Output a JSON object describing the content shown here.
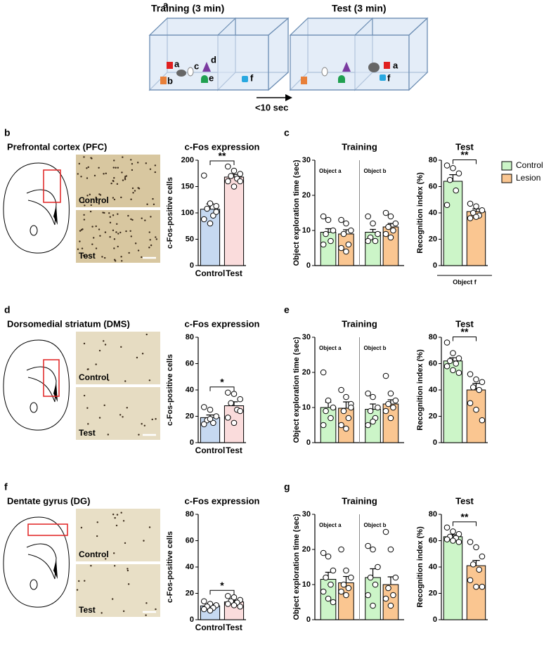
{
  "panel_a": {
    "letter": "a",
    "training": "Training (3 min)",
    "test": "Test (3 min)",
    "delay": "<10 sec",
    "objects": [
      "a",
      "b",
      "c",
      "d",
      "e",
      "f"
    ],
    "test_objects": [
      "a",
      "f"
    ]
  },
  "rows": [
    {
      "letter": "b",
      "region": "Prefrontal cortex (PFC)",
      "image_labels": [
        "Control",
        "Test"
      ],
      "behavior_letter": "c"
    },
    {
      "letter": "d",
      "region": "Dorsomedial striatum (DMS)",
      "image_labels": [
        "Control",
        "Test"
      ],
      "behavior_letter": "e"
    },
    {
      "letter": "f",
      "region": "Dentate gyrus (DG)",
      "image_labels": [
        "Control",
        "Test"
      ],
      "behavior_letter": "g"
    }
  ],
  "chart_data": [
    {
      "type": "bar",
      "title": "c-Fos expression",
      "ylabel": "c-Fos-positive cells",
      "categories": [
        "Control",
        "Test"
      ],
      "values": [
        107,
        168
      ],
      "errors": [
        10,
        5
      ],
      "colors": [
        "#c6d9f1",
        "#fadcdc"
      ],
      "points": [
        [
          171,
          118,
          113,
          108,
          95,
          88,
          80,
          102
        ],
        [
          188,
          180,
          174,
          170,
          165,
          160,
          150,
          160
        ]
      ],
      "ylim": [
        0,
        200
      ],
      "yticks": [
        0,
        50,
        100,
        150,
        200
      ],
      "annotation": "**"
    },
    {
      "type": "grouped_bar",
      "title": "Training",
      "ylabel": "Object exploration time (sec)",
      "categories": [
        "Object a",
        "Object b"
      ],
      "ylim": [
        0,
        30
      ],
      "yticks": [
        0,
        10,
        20,
        30
      ],
      "series": [
        {
          "color": "#ccf5c8",
          "values": [
            9.5,
            9.5
          ],
          "errors": [
            1,
            0.8
          ],
          "points": [
            [
              14,
              13,
              10,
              9,
              7,
              6
            ],
            [
              14,
              12,
              9,
              8,
              7,
              7
            ]
          ]
        },
        {
          "color": "#fac691",
          "values": [
            9,
            11
          ],
          "errors": [
            1.2,
            1
          ],
          "points": [
            [
              13,
              12,
              10,
              9,
              6,
              5,
              4
            ],
            [
              15,
              14,
              12,
              11,
              10,
              9,
              8
            ]
          ]
        }
      ]
    },
    {
      "type": "bar",
      "title": "Test",
      "ylabel": "Recognition index (%)",
      "values": [
        64,
        41
      ],
      "errors": [
        5,
        2
      ],
      "colors": [
        "#ccf5c8",
        "#fac691"
      ],
      "points": [
        [
          76,
          74,
          70,
          65,
          57,
          46
        ],
        [
          47,
          45,
          42,
          40,
          38,
          36,
          37
        ]
      ],
      "ylim": [
        0,
        80
      ],
      "yticks": [
        0,
        20,
        40,
        60,
        80
      ],
      "annotation": "**",
      "xlabel": "Object f",
      "legend": [
        "Control",
        "Lesion"
      ]
    },
    {
      "type": "bar",
      "title": "c-Fos expression",
      "ylabel": "c-Fos-positive cells",
      "categories": [
        "Control",
        "Test"
      ],
      "values": [
        19,
        28
      ],
      "errors": [
        2,
        3
      ],
      "colors": [
        "#c6d9f1",
        "#fadcdc"
      ],
      "points": [
        [
          27,
          25,
          20,
          17,
          15,
          14,
          18
        ],
        [
          38,
          37,
          33,
          30,
          25,
          19,
          15,
          24
        ]
      ],
      "ylim": [
        0,
        80
      ],
      "yticks": [
        0,
        20,
        40,
        60,
        80
      ],
      "annotation": "*"
    },
    {
      "type": "grouped_bar",
      "title": "Training",
      "ylabel": "Object exploration time (sec)",
      "categories": [
        "Object a",
        "Object b"
      ],
      "ylim": [
        0,
        30
      ],
      "yticks": [
        0,
        10,
        20,
        30
      ],
      "series": [
        {
          "color": "#ccf5c8",
          "values": [
            10,
            9.5
          ],
          "errors": [
            1.5,
            1.5
          ],
          "points": [
            [
              20,
              12,
              10,
              9,
              7,
              5
            ],
            [
              14,
              13,
              10,
              9,
              7,
              5,
              6
            ]
          ]
        },
        {
          "color": "#fac691",
          "values": [
            9.8,
            11
          ],
          "errors": [
            1.8,
            1.2
          ],
          "points": [
            [
              15,
              13,
              11,
              9,
              7,
              5,
              4,
              10
            ],
            [
              19,
              14,
              12,
              11,
              10,
              9,
              7
            ]
          ]
        }
      ]
    },
    {
      "type": "bar",
      "title": "Test",
      "ylabel": "Recognition index (%)",
      "values": [
        62,
        40
      ],
      "errors": [
        2.5,
        5
      ],
      "colors": [
        "#ccf5c8",
        "#fac691"
      ],
      "points": [
        [
          76,
          68,
          64,
          62,
          60,
          58,
          55,
          53
        ],
        [
          52,
          48,
          46,
          42,
          40,
          30,
          25,
          17
        ]
      ],
      "ylim": [
        0,
        80
      ],
      "yticks": [
        0,
        20,
        40,
        60,
        80
      ],
      "annotation": "**"
    },
    {
      "type": "bar",
      "title": "c-Fos expression",
      "ylabel": "c-Fos-positive cells",
      "categories": [
        "Control",
        "Test"
      ],
      "values": [
        10.5,
        13.5
      ],
      "errors": [
        1,
        1
      ],
      "colors": [
        "#c6d9f1",
        "#fadcdc"
      ],
      "points": [
        [
          14,
          12,
          11,
          10,
          9,
          8,
          7
        ],
        [
          18,
          17,
          15,
          14,
          13,
          12,
          11,
          10
        ]
      ],
      "ylim": [
        0,
        80
      ],
      "yticks": [
        0,
        20,
        40,
        60,
        80
      ],
      "annotation": "*"
    },
    {
      "type": "grouped_bar",
      "title": "Training",
      "ylabel": "Object exploration time (sec)",
      "categories": [
        "Object a",
        "Object b"
      ],
      "ylim": [
        0,
        30
      ],
      "yticks": [
        0,
        10,
        20,
        30
      ],
      "series": [
        {
          "color": "#ccf5c8",
          "values": [
            11.5,
            12
          ],
          "errors": [
            2,
            2.5
          ],
          "points": [
            [
              19,
              18,
              14,
              12,
              10,
              8,
              6,
              5
            ],
            [
              21,
              20,
              15,
              12,
              10,
              7,
              4
            ]
          ]
        },
        {
          "color": "#fac691",
          "values": [
            10.5,
            10
          ],
          "errors": [
            1.8,
            2.2
          ],
          "points": [
            [
              20,
              14,
              12,
              10,
              9,
              8,
              7
            ],
            [
              25,
              20,
              12,
              9,
              7,
              6,
              4
            ]
          ]
        }
      ]
    },
    {
      "type": "bar",
      "title": "Test",
      "ylabel": "Recognition index (%)",
      "values": [
        63,
        41
      ],
      "errors": [
        1.5,
        4
      ],
      "colors": [
        "#ccf5c8",
        "#fac691"
      ],
      "points": [
        [
          70,
          67,
          65,
          63,
          62,
          61,
          60,
          59
        ],
        [
          59,
          55,
          48,
          42,
          38,
          30,
          25,
          25
        ]
      ],
      "ylim": [
        0,
        80
      ],
      "yticks": [
        0,
        20,
        40,
        60,
        80
      ],
      "annotation": "**"
    }
  ]
}
